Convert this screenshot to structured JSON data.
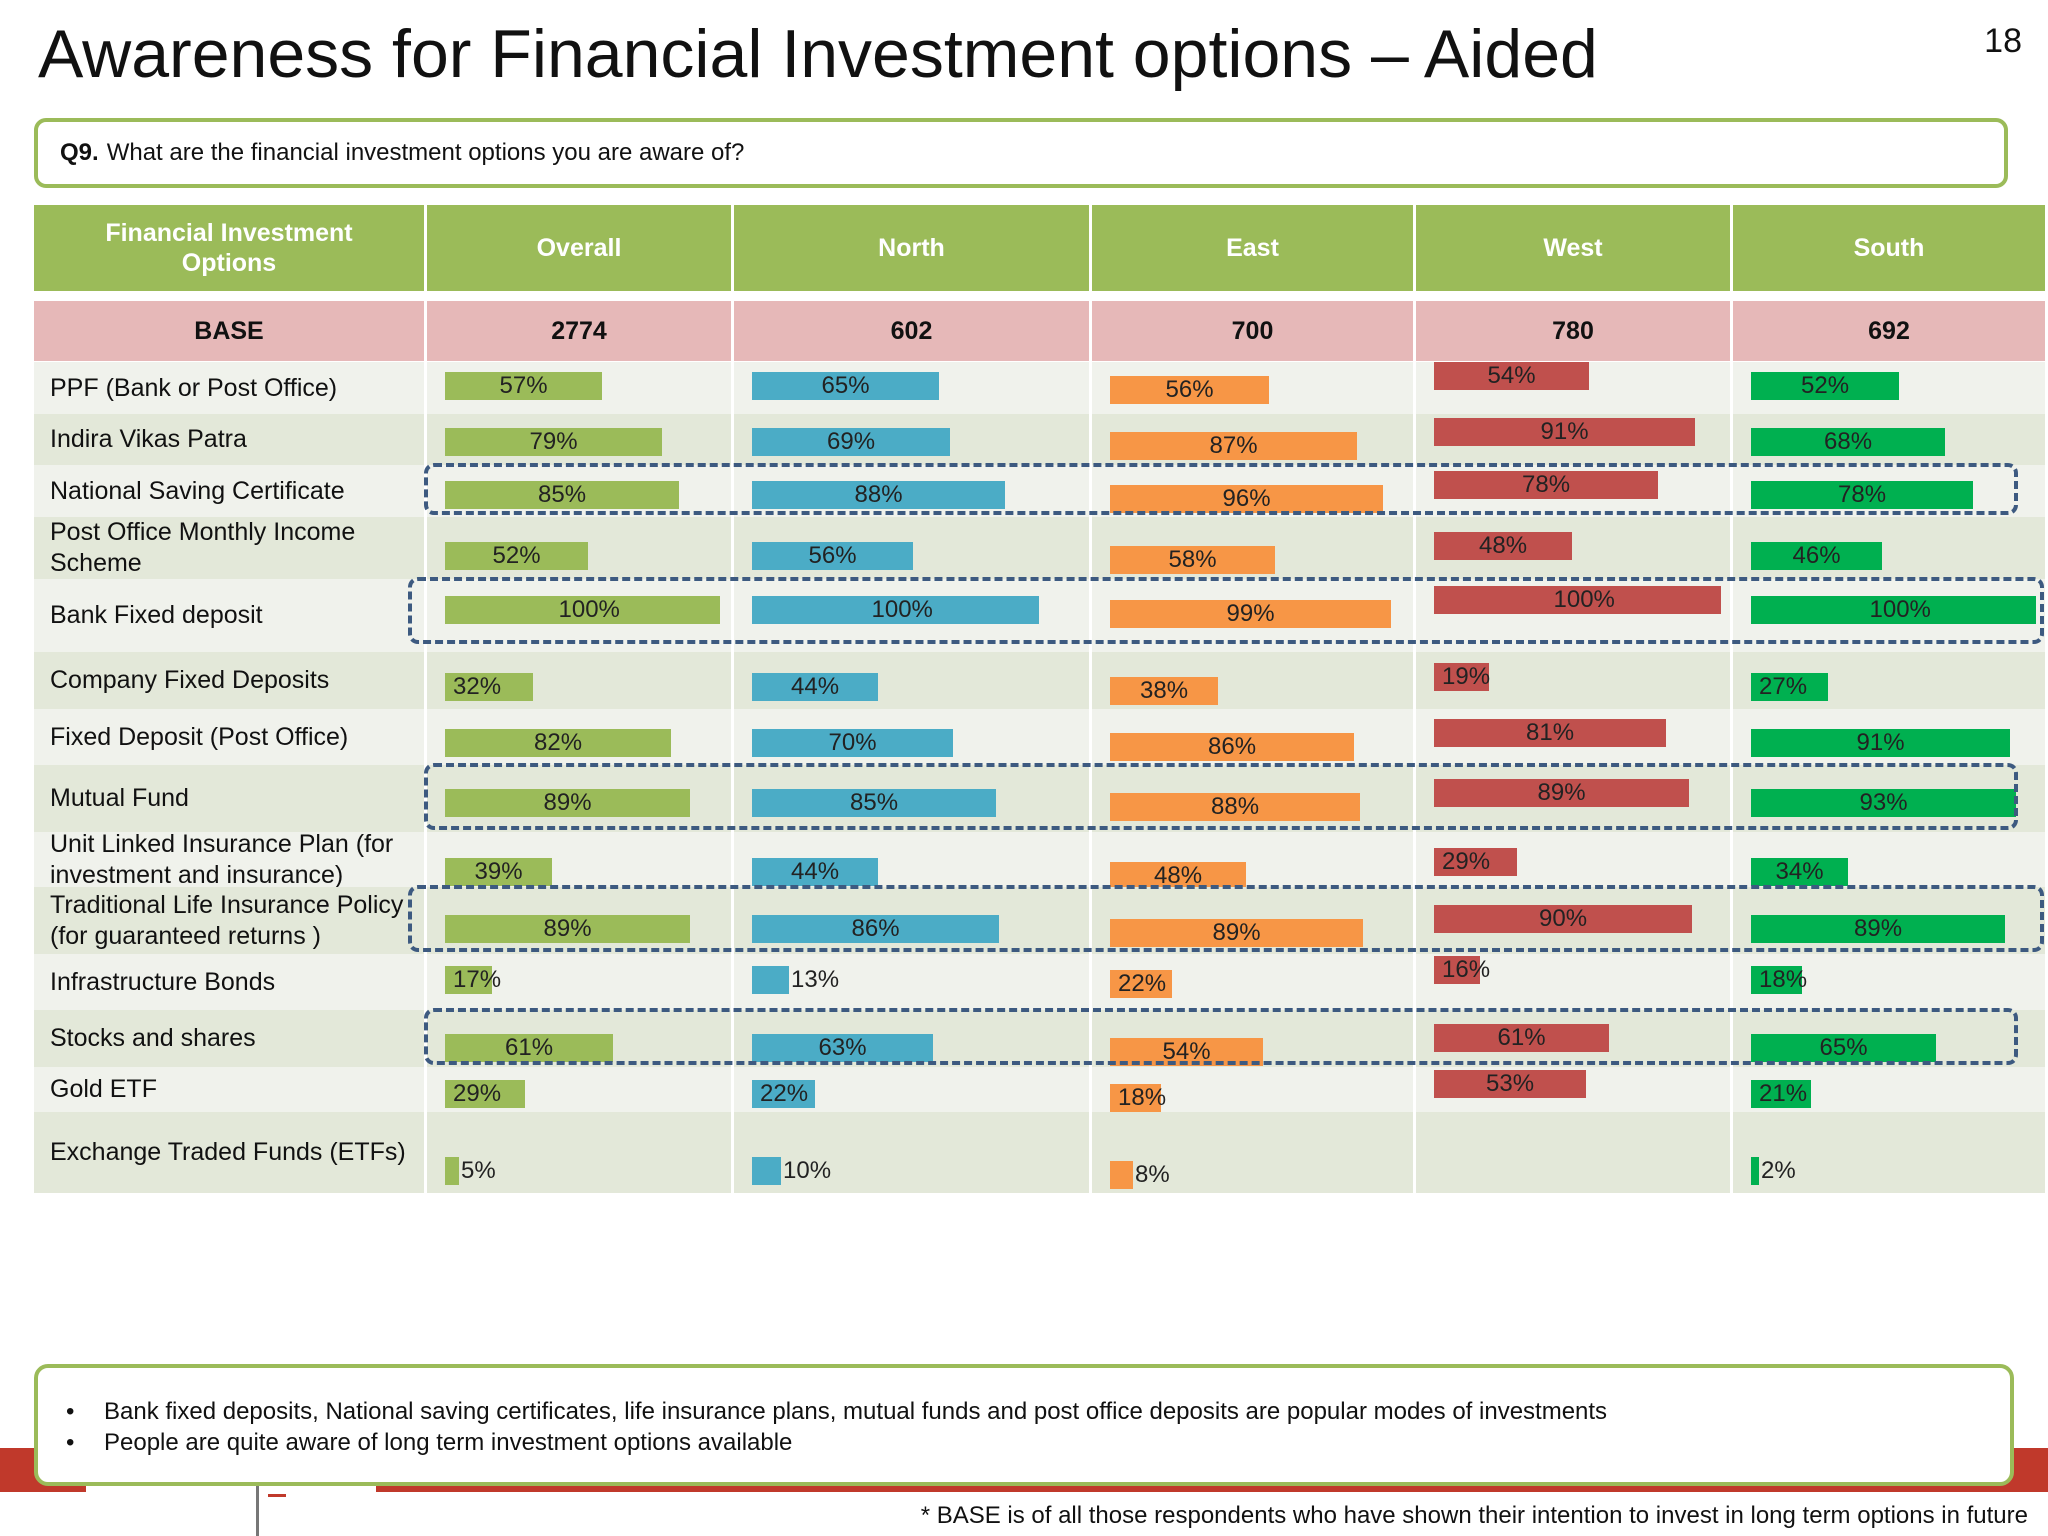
{
  "page": {
    "title": "Awareness for Financial Investment options – Aided",
    "page_number": "18"
  },
  "question": {
    "code": "Q9.",
    "text": "What are the financial investment options you are aware of?"
  },
  "colors": {
    "Overall": "#9bbb59",
    "North": "#4bacc6",
    "East": "#f79646",
    "West": "#c0504d",
    "South": "#00b050",
    "header_bg": "#9bbb59",
    "base_bg": "#e6b8b8",
    "highlight": "#3d5a80"
  },
  "chart_data": {
    "type": "bar",
    "header_label": "Financial Investment Options",
    "base_label": "BASE",
    "series": [
      {
        "name": "Overall",
        "base": "2774",
        "values": [
          57,
          79,
          85,
          52,
          100,
          32,
          82,
          89,
          39,
          89,
          17,
          61,
          29,
          5
        ]
      },
      {
        "name": "North",
        "base": "602",
        "values": [
          65,
          69,
          88,
          56,
          100,
          44,
          70,
          85,
          44,
          86,
          13,
          63,
          22,
          10
        ]
      },
      {
        "name": "East",
        "base": "700",
        "values": [
          56,
          87,
          96,
          58,
          99,
          38,
          86,
          88,
          48,
          89,
          22,
          54,
          18,
          8
        ]
      },
      {
        "name": "West",
        "base": "780",
        "values": [
          54,
          91,
          78,
          48,
          100,
          19,
          81,
          89,
          29,
          90,
          16,
          61,
          53,
          null
        ]
      },
      {
        "name": "South",
        "base": "692",
        "values": [
          52,
          68,
          78,
          46,
          100,
          27,
          91,
          93,
          34,
          89,
          18,
          65,
          21,
          2
        ]
      }
    ],
    "categories": [
      "PPF (Bank or Post Office)",
      "Indira Vikas Patra",
      "National Saving Certificate",
      "Post Office Monthly Income Scheme",
      "Bank Fixed deposit",
      "Company Fixed Deposits",
      "Fixed Deposit (Post Office)",
      "Mutual Fund",
      "Unit Linked Insurance Plan (for investment and insurance)",
      "Traditional Life Insurance Policy (for guaranteed returns )",
      "Infrastructure Bonds",
      "Stocks and shares",
      "Gold ETF",
      "Exchange Traded Funds (ETFs)"
    ],
    "highlighted_categories": [
      "National Saving Certificate",
      "Bank Fixed deposit",
      "Mutual Fund",
      "Traditional Life Insurance Policy (for guaranteed returns )",
      "Stocks and shares"
    ],
    "value_unit": "%",
    "xlim": [
      0,
      100
    ]
  },
  "insights": [
    "Bank fixed deposits, National saving certificates, life insurance plans, mutual funds and post office deposits are popular modes of  investments",
    "People are quite aware of long term investment options available"
  ],
  "footnote": "* BASE is of all those respondents who have shown their intention to invest in long term options in future"
}
